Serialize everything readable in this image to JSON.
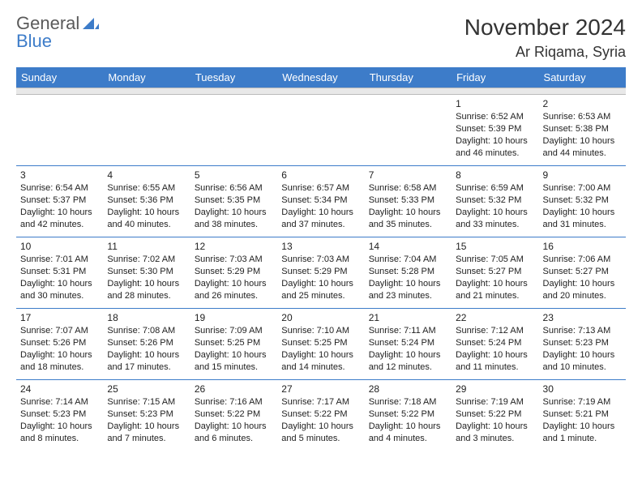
{
  "brand": {
    "general": "General",
    "blue": "Blue"
  },
  "title": "November 2024",
  "location": "Ar Riqama, Syria",
  "colors": {
    "accent": "#3d7cc9",
    "header_text": "#ffffff",
    "gap_bg": "#e8e8e8",
    "text": "#222222"
  },
  "dayHeaders": [
    "Sunday",
    "Monday",
    "Tuesday",
    "Wednesday",
    "Thursday",
    "Friday",
    "Saturday"
  ],
  "weeks": [
    [
      null,
      null,
      null,
      null,
      null,
      {
        "n": "1",
        "sr": "Sunrise: 6:52 AM",
        "ss": "Sunset: 5:39 PM",
        "dl": "Daylight: 10 hours and 46 minutes."
      },
      {
        "n": "2",
        "sr": "Sunrise: 6:53 AM",
        "ss": "Sunset: 5:38 PM",
        "dl": "Daylight: 10 hours and 44 minutes."
      }
    ],
    [
      {
        "n": "3",
        "sr": "Sunrise: 6:54 AM",
        "ss": "Sunset: 5:37 PM",
        "dl": "Daylight: 10 hours and 42 minutes."
      },
      {
        "n": "4",
        "sr": "Sunrise: 6:55 AM",
        "ss": "Sunset: 5:36 PM",
        "dl": "Daylight: 10 hours and 40 minutes."
      },
      {
        "n": "5",
        "sr": "Sunrise: 6:56 AM",
        "ss": "Sunset: 5:35 PM",
        "dl": "Daylight: 10 hours and 38 minutes."
      },
      {
        "n": "6",
        "sr": "Sunrise: 6:57 AM",
        "ss": "Sunset: 5:34 PM",
        "dl": "Daylight: 10 hours and 37 minutes."
      },
      {
        "n": "7",
        "sr": "Sunrise: 6:58 AM",
        "ss": "Sunset: 5:33 PM",
        "dl": "Daylight: 10 hours and 35 minutes."
      },
      {
        "n": "8",
        "sr": "Sunrise: 6:59 AM",
        "ss": "Sunset: 5:32 PM",
        "dl": "Daylight: 10 hours and 33 minutes."
      },
      {
        "n": "9",
        "sr": "Sunrise: 7:00 AM",
        "ss": "Sunset: 5:32 PM",
        "dl": "Daylight: 10 hours and 31 minutes."
      }
    ],
    [
      {
        "n": "10",
        "sr": "Sunrise: 7:01 AM",
        "ss": "Sunset: 5:31 PM",
        "dl": "Daylight: 10 hours and 30 minutes."
      },
      {
        "n": "11",
        "sr": "Sunrise: 7:02 AM",
        "ss": "Sunset: 5:30 PM",
        "dl": "Daylight: 10 hours and 28 minutes."
      },
      {
        "n": "12",
        "sr": "Sunrise: 7:03 AM",
        "ss": "Sunset: 5:29 PM",
        "dl": "Daylight: 10 hours and 26 minutes."
      },
      {
        "n": "13",
        "sr": "Sunrise: 7:03 AM",
        "ss": "Sunset: 5:29 PM",
        "dl": "Daylight: 10 hours and 25 minutes."
      },
      {
        "n": "14",
        "sr": "Sunrise: 7:04 AM",
        "ss": "Sunset: 5:28 PM",
        "dl": "Daylight: 10 hours and 23 minutes."
      },
      {
        "n": "15",
        "sr": "Sunrise: 7:05 AM",
        "ss": "Sunset: 5:27 PM",
        "dl": "Daylight: 10 hours and 21 minutes."
      },
      {
        "n": "16",
        "sr": "Sunrise: 7:06 AM",
        "ss": "Sunset: 5:27 PM",
        "dl": "Daylight: 10 hours and 20 minutes."
      }
    ],
    [
      {
        "n": "17",
        "sr": "Sunrise: 7:07 AM",
        "ss": "Sunset: 5:26 PM",
        "dl": "Daylight: 10 hours and 18 minutes."
      },
      {
        "n": "18",
        "sr": "Sunrise: 7:08 AM",
        "ss": "Sunset: 5:26 PM",
        "dl": "Daylight: 10 hours and 17 minutes."
      },
      {
        "n": "19",
        "sr": "Sunrise: 7:09 AM",
        "ss": "Sunset: 5:25 PM",
        "dl": "Daylight: 10 hours and 15 minutes."
      },
      {
        "n": "20",
        "sr": "Sunrise: 7:10 AM",
        "ss": "Sunset: 5:25 PM",
        "dl": "Daylight: 10 hours and 14 minutes."
      },
      {
        "n": "21",
        "sr": "Sunrise: 7:11 AM",
        "ss": "Sunset: 5:24 PM",
        "dl": "Daylight: 10 hours and 12 minutes."
      },
      {
        "n": "22",
        "sr": "Sunrise: 7:12 AM",
        "ss": "Sunset: 5:24 PM",
        "dl": "Daylight: 10 hours and 11 minutes."
      },
      {
        "n": "23",
        "sr": "Sunrise: 7:13 AM",
        "ss": "Sunset: 5:23 PM",
        "dl": "Daylight: 10 hours and 10 minutes."
      }
    ],
    [
      {
        "n": "24",
        "sr": "Sunrise: 7:14 AM",
        "ss": "Sunset: 5:23 PM",
        "dl": "Daylight: 10 hours and 8 minutes."
      },
      {
        "n": "25",
        "sr": "Sunrise: 7:15 AM",
        "ss": "Sunset: 5:23 PM",
        "dl": "Daylight: 10 hours and 7 minutes."
      },
      {
        "n": "26",
        "sr": "Sunrise: 7:16 AM",
        "ss": "Sunset: 5:22 PM",
        "dl": "Daylight: 10 hours and 6 minutes."
      },
      {
        "n": "27",
        "sr": "Sunrise: 7:17 AM",
        "ss": "Sunset: 5:22 PM",
        "dl": "Daylight: 10 hours and 5 minutes."
      },
      {
        "n": "28",
        "sr": "Sunrise: 7:18 AM",
        "ss": "Sunset: 5:22 PM",
        "dl": "Daylight: 10 hours and 4 minutes."
      },
      {
        "n": "29",
        "sr": "Sunrise: 7:19 AM",
        "ss": "Sunset: 5:22 PM",
        "dl": "Daylight: 10 hours and 3 minutes."
      },
      {
        "n": "30",
        "sr": "Sunrise: 7:19 AM",
        "ss": "Sunset: 5:21 PM",
        "dl": "Daylight: 10 hours and 1 minute."
      }
    ]
  ]
}
